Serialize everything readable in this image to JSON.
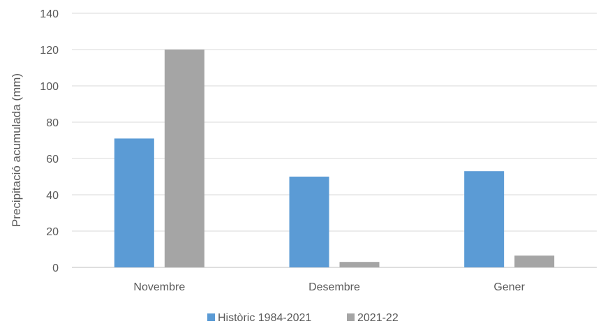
{
  "chart_data": {
    "type": "bar",
    "categories": [
      "Novembre",
      "Desembre",
      "Gener"
    ],
    "series": [
      {
        "name": "Històric 1984-2021",
        "values": [
          71,
          50,
          53
        ],
        "color": "#5b9bd5"
      },
      {
        "name": "2021-22",
        "values": [
          120,
          3,
          6.5
        ],
        "color": "#a5a5a5"
      }
    ],
    "title": "",
    "xlabel": "",
    "ylabel": "Precipitació acumulada (mm)",
    "ylim": [
      0,
      140
    ],
    "yticks": [
      "0",
      "20",
      "40",
      "60",
      "80",
      "100",
      "120",
      "140"
    ],
    "grid": true,
    "legend_position": "bottom"
  }
}
